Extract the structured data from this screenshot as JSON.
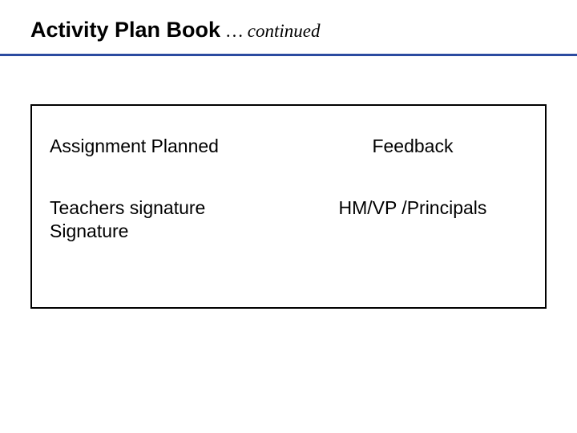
{
  "header": {
    "title_main": "Activity Plan Book ",
    "title_continued": "… continued"
  },
  "table": {
    "rows": [
      {
        "left": "Assignment Planned",
        "right": "Feedback"
      },
      {
        "left": "Teachers signature\nSignature",
        "right": "HM/VP /Principals"
      }
    ]
  },
  "style": {
    "divider_color": "#2b4ba0",
    "border_color": "#000000",
    "background_color": "#ffffff",
    "title_fontsize": 27,
    "continued_fontsize": 23,
    "body_fontsize": 23
  }
}
